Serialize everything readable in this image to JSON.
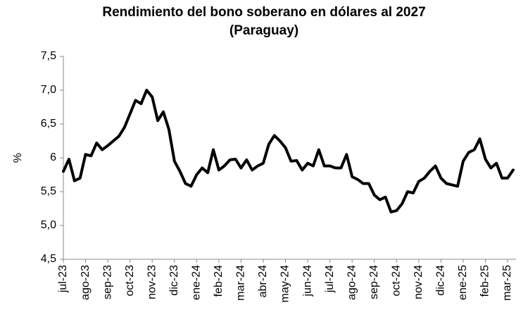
{
  "chart_data": {
    "type": "line",
    "title": "Rendimiento del bono soberano en dólares al 2027",
    "subtitle": "(Paraguay)",
    "y_label": "%",
    "color": "#000000",
    "categories": [
      "jul-23",
      null,
      null,
      null,
      "ago-23",
      null,
      null,
      null,
      "sep-23",
      null,
      null,
      null,
      "oct-23",
      null,
      null,
      null,
      "nov-23",
      null,
      null,
      null,
      "dic-23",
      null,
      null,
      null,
      "ene-24",
      null,
      null,
      null,
      "feb-24",
      null,
      null,
      null,
      "mar-24",
      null,
      null,
      null,
      "abr-24",
      null,
      null,
      null,
      "may-24",
      null,
      null,
      null,
      "jun-24",
      null,
      null,
      null,
      "jul-24",
      null,
      null,
      null,
      "ago-24",
      null,
      null,
      null,
      "sep-24",
      null,
      null,
      null,
      "oct-24",
      null,
      null,
      null,
      "nov-24",
      null,
      null,
      null,
      "dic-24",
      null,
      null,
      null,
      "ene-25",
      null,
      null,
      null,
      "feb-25",
      null,
      null,
      null,
      "mar-25",
      null
    ],
    "values": [
      5.8,
      5.98,
      5.66,
      5.7,
      6.05,
      6.03,
      6.22,
      6.12,
      6.18,
      6.25,
      6.32,
      6.45,
      6.65,
      6.85,
      6.8,
      7.0,
      6.9,
      6.55,
      6.68,
      6.42,
      5.95,
      5.8,
      5.62,
      5.58,
      5.75,
      5.85,
      5.78,
      6.12,
      5.82,
      5.88,
      5.97,
      5.98,
      5.85,
      5.97,
      5.82,
      5.88,
      5.92,
      6.2,
      6.33,
      6.25,
      6.15,
      5.95,
      5.96,
      5.82,
      5.92,
      5.88,
      6.12,
      5.88,
      5.88,
      5.85,
      5.85,
      6.05,
      5.72,
      5.68,
      5.62,
      5.62,
      5.45,
      5.38,
      5.42,
      5.2,
      5.22,
      5.32,
      5.5,
      5.48,
      5.65,
      5.7,
      5.8,
      5.88,
      5.7,
      5.62,
      5.6,
      5.58,
      5.95,
      6.08,
      6.12,
      6.28,
      5.98,
      5.85,
      5.92,
      5.7,
      5.7,
      5.82
    ],
    "ylim": [
      4.5,
      7.5
    ],
    "yticks": [
      {
        "value": 4.5,
        "label": "4,5"
      },
      {
        "value": 5.0,
        "label": "5,0"
      },
      {
        "value": 5.5,
        "label": "5,5"
      },
      6,
      {
        "value": 6.5,
        "label": "6,5"
      },
      {
        "value": 7.0,
        "label": "7,0"
      },
      {
        "value": 7.5,
        "label": "7,5"
      }
    ],
    "grid": false
  }
}
